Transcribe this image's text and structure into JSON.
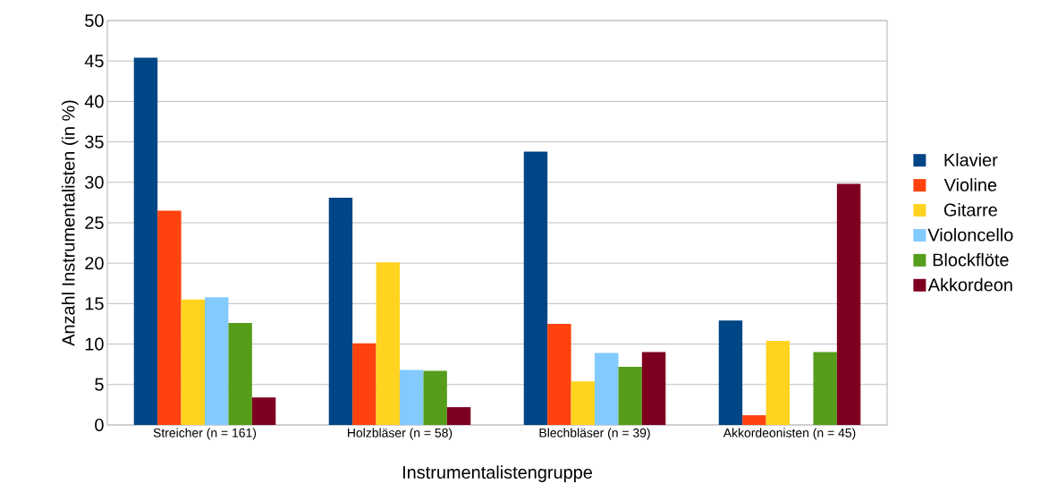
{
  "chart_data": {
    "type": "bar",
    "xlabel": "Instrumentalistengruppe",
    "ylabel": "Anzahl Instrumentalisten (in %)",
    "categories": [
      "Streicher (n = 161)",
      "Holzbläser (n = 58)",
      "Blechbläser (n = 39)",
      "Akkordeonisten (n = 45)"
    ],
    "series": [
      {
        "name": "Klavier",
        "color": "#004586",
        "values": [
          45.4,
          28.1,
          33.8,
          12.9
        ]
      },
      {
        "name": "Violine",
        "color": "#ff420e",
        "values": [
          26.5,
          10.1,
          12.5,
          1.2
        ]
      },
      {
        "name": "Gitarre",
        "color": "#ffd320",
        "values": [
          15.5,
          20.1,
          5.4,
          10.4
        ]
      },
      {
        "name": "Violoncello",
        "color": "#83caff",
        "values": [
          15.8,
          6.8,
          8.9,
          null
        ]
      },
      {
        "name": "Blockflöte",
        "color": "#579d1c",
        "values": [
          12.6,
          6.7,
          7.2,
          9.0
        ]
      },
      {
        "name": "Akkordeon",
        "color": "#7e0021",
        "values": [
          3.4,
          2.2,
          9.0,
          29.8
        ]
      }
    ],
    "ylim": [
      0,
      50
    ],
    "yticks": [
      0,
      5,
      10,
      15,
      20,
      25,
      30,
      35,
      40,
      45,
      50
    ],
    "grid": "y",
    "legend": "right"
  }
}
